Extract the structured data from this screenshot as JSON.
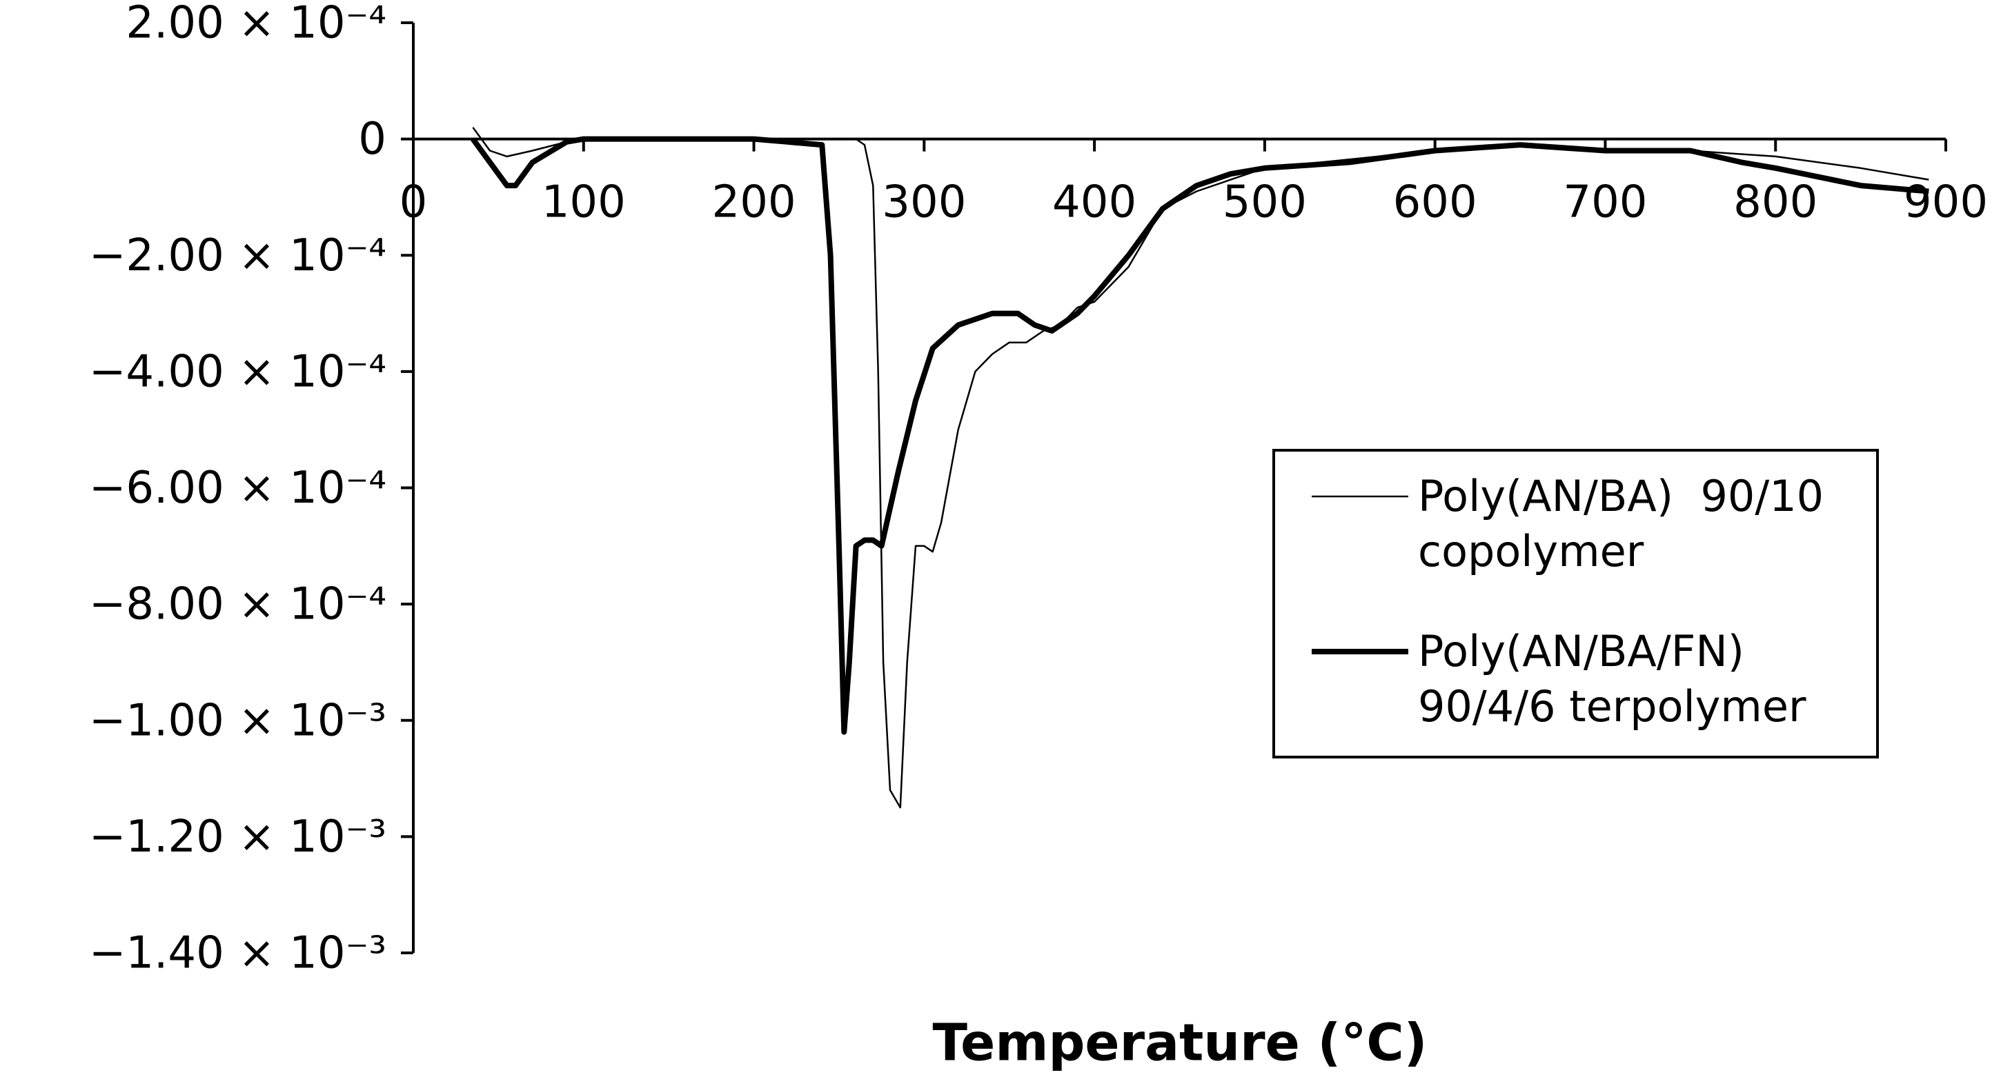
{
  "chart_data": {
    "type": "line",
    "x_label": "Temperature (°C)",
    "xlim": [
      0,
      900
    ],
    "xticks": [
      0,
      100,
      200,
      300,
      400,
      500,
      600,
      700,
      800,
      900
    ],
    "ylim": [
      -0.0014,
      0.0002
    ],
    "yticks": [
      {
        "value": 0.0002,
        "label": "2.00 × 10⁻⁴"
      },
      0,
      {
        "value": -0.0002,
        "label": "−2.00 × 10⁻⁴"
      },
      {
        "value": -0.0004,
        "label": "−4.00 × 10⁻⁴"
      },
      {
        "value": -0.0006,
        "label": "−6.00 × 10⁻⁴"
      },
      {
        "value": -0.0008,
        "label": "−8.00 × 10⁻⁴"
      },
      {
        "value": -0.001,
        "label": "−1.00 × 10⁻³"
      },
      {
        "value": -0.0012,
        "label": "−1.20 × 10⁻³"
      },
      {
        "value": -0.0014,
        "label": "−1.40 × 10⁻³"
      }
    ],
    "series": [
      {
        "name": "Poly(AN/BA)  90/10\ncopolymer",
        "color": "#000000",
        "line_width": 2.5,
        "x": [
          35,
          45,
          55,
          70,
          90,
          100,
          150,
          200,
          240,
          260,
          265,
          270,
          273,
          276,
          280,
          286,
          290,
          295,
          300,
          305,
          310,
          320,
          330,
          340,
          350,
          360,
          370,
          380,
          390,
          400,
          420,
          440,
          460,
          480,
          500,
          600,
          650,
          700,
          750,
          800,
          850,
          890
        ],
        "values": [
          2e-05,
          -2e-05,
          -3e-05,
          -2e-05,
          -5e-06,
          0,
          0,
          0,
          0,
          0,
          -1e-05,
          -8e-05,
          -0.0004,
          -0.0009,
          -0.00112,
          -0.00115,
          -0.0009,
          -0.0007,
          -0.0007,
          -0.00071,
          -0.00066,
          -0.0005,
          -0.0004,
          -0.00037,
          -0.00035,
          -0.00035,
          -0.00033,
          -0.00032,
          -0.00029,
          -0.00028,
          -0.00022,
          -0.00012,
          -9e-05,
          -7e-05,
          -5e-05,
          -2e-05,
          -1e-05,
          -2e-05,
          -2e-05,
          -3e-05,
          -5e-05,
          -7e-05
        ]
      },
      {
        "name": "Poly(AN/BA/FN)\n90/4/6 terpolymer",
        "color": "#000000",
        "line_width": 8,
        "x": [
          35,
          45,
          55,
          60,
          70,
          90,
          100,
          150,
          200,
          240,
          245,
          250,
          253,
          256,
          260,
          265,
          270,
          275,
          285,
          295,
          305,
          320,
          340,
          355,
          365,
          375,
          390,
          400,
          420,
          440,
          460,
          480,
          500,
          550,
          600,
          650,
          700,
          750,
          780,
          800,
          850,
          890
        ],
        "values": [
          0,
          -4e-05,
          -8e-05,
          -8e-05,
          -4e-05,
          -5e-06,
          0,
          0,
          0,
          -1e-05,
          -0.0002,
          -0.0007,
          -0.00102,
          -0.0009,
          -0.0007,
          -0.00069,
          -0.00069,
          -0.0007,
          -0.00057,
          -0.00045,
          -0.00036,
          -0.00032,
          -0.0003,
          -0.0003,
          -0.00032,
          -0.00033,
          -0.0003,
          -0.00027,
          -0.0002,
          -0.00012,
          -8e-05,
          -6e-05,
          -5e-05,
          -4e-05,
          -2e-05,
          -1e-05,
          -2e-05,
          -2e-05,
          -4e-05,
          -5e-05,
          -8e-05,
          -9e-05
        ]
      }
    ]
  }
}
